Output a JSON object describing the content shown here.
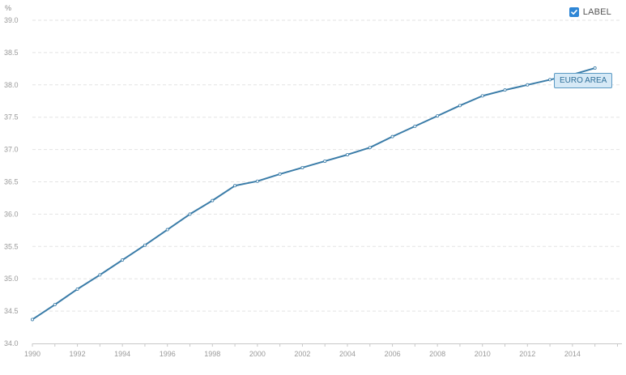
{
  "legend": {
    "label": "LABEL",
    "checked": true
  },
  "chart_data": {
    "type": "line",
    "unit_label": "%",
    "x": [
      1990,
      1991,
      1992,
      1993,
      1994,
      1995,
      1996,
      1997,
      1998,
      1999,
      2000,
      2001,
      2002,
      2003,
      2004,
      2005,
      2006,
      2007,
      2008,
      2009,
      2010,
      2011,
      2012,
      2013,
      2014,
      2015
    ],
    "series": [
      {
        "name": "EURO AREA",
        "color": "#3a7ca8",
        "values": [
          34.37,
          34.6,
          34.84,
          35.06,
          35.29,
          35.52,
          35.76,
          36.0,
          36.21,
          36.44,
          36.51,
          36.62,
          36.72,
          36.82,
          36.92,
          37.03,
          37.2,
          37.36,
          37.52,
          37.68,
          37.83,
          37.92,
          38.0,
          38.08,
          38.16,
          38.26
        ]
      }
    ],
    "xticks": [
      "1990",
      "1992",
      "1994",
      "1996",
      "1998",
      "2000",
      "2002",
      "2004",
      "2006",
      "2008",
      "2010",
      "2012",
      "2014"
    ],
    "yticks": [
      "34.0",
      "34.5",
      "35.0",
      "35.5",
      "36.0",
      "36.5",
      "37.0",
      "37.5",
      "38.0",
      "38.5",
      "39.0"
    ],
    "xlim": [
      1990,
      2016.2
    ],
    "ylim": [
      34.0,
      39.0
    ],
    "grid": true,
    "grid_style": "dashed-horizontal"
  }
}
